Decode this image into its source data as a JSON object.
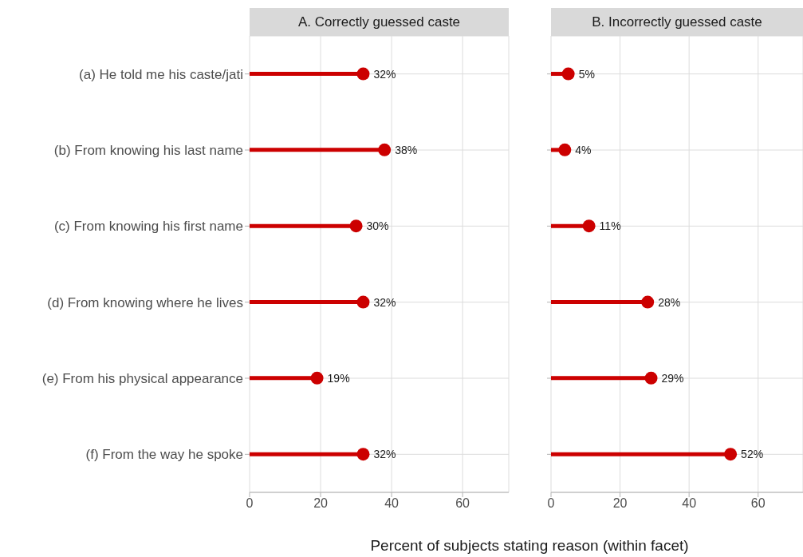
{
  "chart_data": [
    {
      "type": "lollipop",
      "orientation": "horizontal",
      "title": "A. Correctly guessed caste",
      "xlabel": "Percent of subjects stating reason (within facet)",
      "categories": [
        "(a) He told me his caste/jati",
        "(b) From knowing his last name",
        "(c) From knowing his first name",
        "(d) From knowing where he lives",
        "(e) From his physical appearance",
        "(f) From the way he spoke"
      ],
      "values": [
        32,
        38,
        30,
        32,
        19,
        32
      ],
      "value_labels": [
        "32%",
        "38%",
        "30%",
        "32%",
        "19%",
        "32%"
      ],
      "color": "#cc0000",
      "xlim": [
        0,
        73
      ],
      "xticks": [
        0,
        20,
        40,
        60
      ],
      "grid": true
    },
    {
      "type": "lollipop",
      "orientation": "horizontal",
      "title": "B. Incorrectly guessed caste",
      "categories": [
        null,
        null,
        null,
        null,
        null,
        null
      ],
      "values": [
        5,
        4,
        11,
        28,
        29,
        52
      ],
      "value_labels": [
        "5%",
        "4%",
        "11%",
        "28%",
        "29%",
        "52%"
      ],
      "color": "#cc0000",
      "xlim": [
        0,
        73
      ],
      "xticks": [
        0,
        20,
        40,
        60
      ],
      "grid": true,
      "tick_labels": "x"
    }
  ]
}
